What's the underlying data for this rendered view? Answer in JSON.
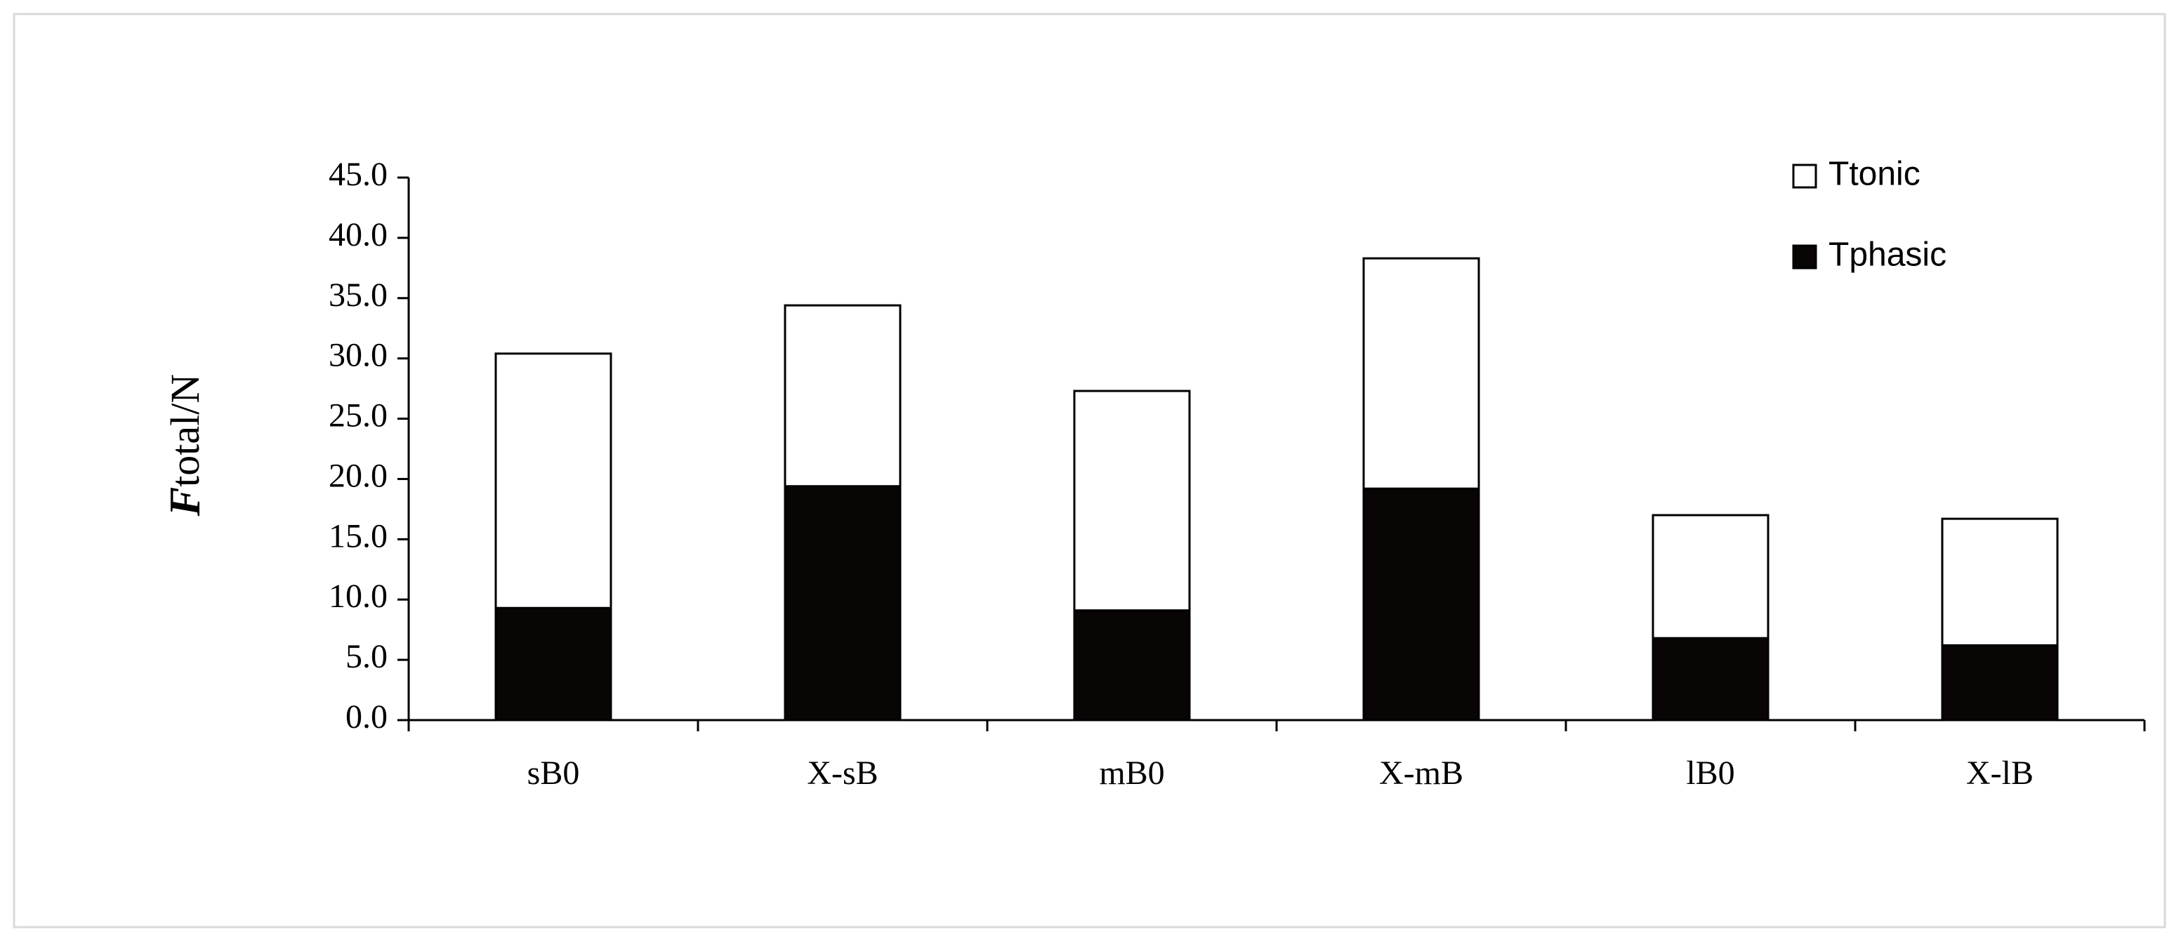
{
  "chart_data": {
    "type": "stacked_bar",
    "y_label": [
      "F",
      "total/N"
    ],
    "categories": [
      "sB0",
      "X-sB",
      "mB0",
      "X-mB",
      "lB0",
      "X-lB"
    ],
    "series": [
      {
        "name": "Tphasic",
        "color": "#0a0505",
        "values": [
          9.3,
          19.4,
          9.1,
          19.2,
          6.8,
          6.2
        ]
      },
      {
        "name": "Ttonic",
        "color": "#ffffff",
        "values": [
          21.1,
          15.0,
          18.2,
          19.1,
          10.2,
          10.5
        ]
      }
    ],
    "ylim": [
      0,
      45
    ],
    "yticks": [
      {
        "value": 0,
        "label": "0.0"
      },
      {
        "value": 5,
        "label": "5.0"
      },
      {
        "value": 10,
        "label": "10.0"
      },
      {
        "value": 15,
        "label": "15.0"
      },
      {
        "value": 20,
        "label": "20.0"
      },
      {
        "value": 25,
        "label": "25.0"
      },
      {
        "value": 30,
        "label": "30.0"
      },
      {
        "value": 35,
        "label": "35.0"
      },
      {
        "value": 40,
        "label": "40.0"
      },
      {
        "value": 45,
        "label": "45.0"
      }
    ],
    "grid": false,
    "legend_position": "top-right"
  }
}
